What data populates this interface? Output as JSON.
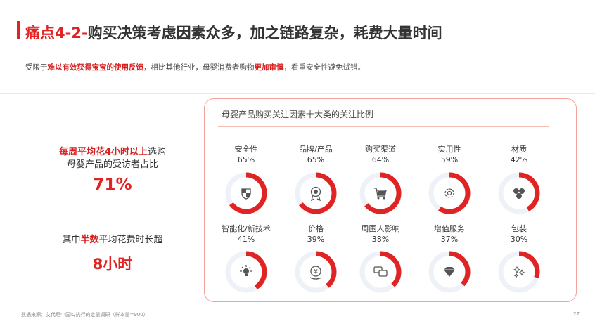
{
  "header": {
    "title_accent": "痛点4-2-",
    "title_rest": "购买决策考虑因素众多，加之链路复杂，耗费大量时间",
    "subtitle_1": "受限于",
    "subtitle_hl1": "难以有效获得宝宝的使用反馈",
    "subtitle_2": "，相比其他行业，母婴消费者购物",
    "subtitle_hl2": "更加审慎",
    "subtitle_3": "，看重安全性避免试错。"
  },
  "stats": {
    "stat1_hl": "每周平均花4小时以上",
    "stat1_rest": "选购",
    "stat1_line2": "母婴产品的受访者占比",
    "stat1_value": "71%",
    "stat2_pre": "其中",
    "stat2_hl": "半数",
    "stat2_rest": "平均花费时长超",
    "stat2_value": "8小时"
  },
  "chart_data": {
    "type": "pie",
    "title": "- 母婴产品购买关注因素十大类的关注比例 -",
    "items": [
      {
        "label": "安全性",
        "value": 65,
        "value_label": "65%",
        "icon": "shield-icon"
      },
      {
        "label": "品牌/产品",
        "value": 65,
        "value_label": "65%",
        "icon": "award-badge-icon"
      },
      {
        "label": "购买渠道",
        "value": 64,
        "value_label": "64%",
        "icon": "shopping-cart-icon"
      },
      {
        "label": "实用性",
        "value": 59,
        "value_label": "59%",
        "icon": "gear-icon"
      },
      {
        "label": "材质",
        "value": 42,
        "value_label": "42%",
        "icon": "material-cells-icon"
      },
      {
        "label": "智能化/新技术",
        "value": 41,
        "value_label": "41%",
        "icon": "lightbulb-icon"
      },
      {
        "label": "价格",
        "value": 39,
        "value_label": "39%",
        "icon": "yuan-coin-icon"
      },
      {
        "label": "周围人影响",
        "value": 38,
        "value_label": "38%",
        "icon": "chat-bubbles-icon"
      },
      {
        "label": "增值服务",
        "value": 37,
        "value_label": "37%",
        "icon": "diamond-icon"
      },
      {
        "label": "包装",
        "value": 30,
        "value_label": "30%",
        "icon": "sparkle-icon"
      }
    ],
    "colors": {
      "accent": "#e02424",
      "track": "#eef2f8",
      "icon": "#555555"
    }
  },
  "footer": {
    "source": "数据来源：艾代尼中国iQ执行的定量调研（样本量=900）",
    "page": "27"
  }
}
